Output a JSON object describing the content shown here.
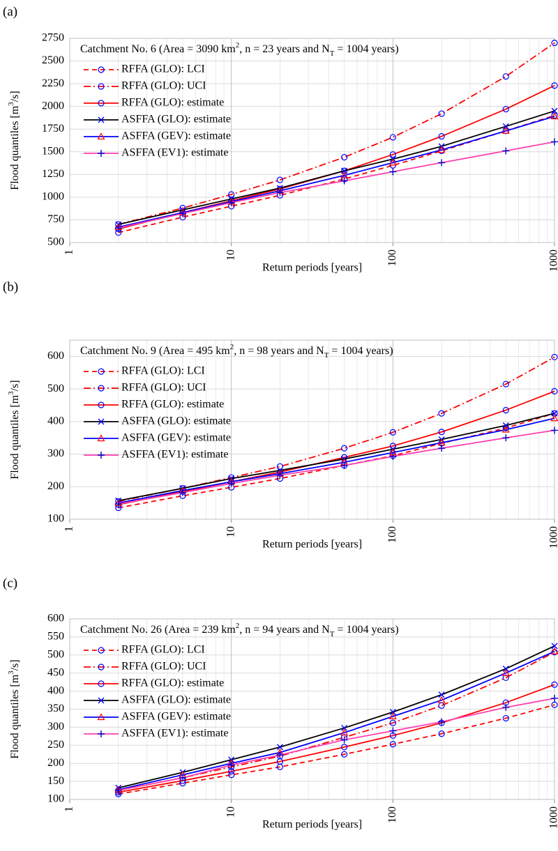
{
  "chart_data": [
    {
      "type": "line",
      "panel": "(a)",
      "annotation": [
        "Catchment No. 6 (Area = 3090 km",
        "2",
        ", n = 23 years and N",
        "T",
        " = 1004 years)"
      ],
      "x_label": "Return periods [years]",
      "y_label": [
        "Flood quantiles [m",
        "3",
        "/s]"
      ],
      "x": [
        2,
        5,
        10,
        20,
        50,
        100,
        200,
        500,
        1000
      ],
      "log_x": true,
      "xlim": [
        1,
        1000
      ],
      "xticks": [
        1,
        10,
        100,
        1000
      ],
      "ylim": [
        500,
        2750
      ],
      "yticks": [
        500,
        750,
        1000,
        1250,
        1500,
        1750,
        2000,
        2250,
        2500,
        2750
      ],
      "grid": true,
      "minor_grid": true,
      "legend": "upper left",
      "series": [
        {
          "name": "RFFA (GLO): LCI",
          "color": "#ff0000",
          "dash": "dashed",
          "marker": "circle",
          "marker_color": "#0000ff",
          "values": [
            610,
            780,
            900,
            1020,
            1200,
            1350,
            1510,
            1730,
            1900
          ]
        },
        {
          "name": "RFFA (GLO): UCI",
          "color": "#ff0000",
          "dash": "dashdot",
          "marker": "circle",
          "marker_color": "#0000ff",
          "values": [
            700,
            880,
            1030,
            1190,
            1440,
            1660,
            1920,
            2330,
            2700
          ]
        },
        {
          "name": "RFFA (GLO): estimate",
          "color": "#ff0000",
          "dash": "solid",
          "marker": "circle",
          "marker_color": "#0000ff",
          "values": [
            650,
            830,
            960,
            1090,
            1290,
            1470,
            1670,
            1970,
            2230
          ]
        },
        {
          "name": "ASFFA (GLO): estimate",
          "color": "#000000",
          "dash": "solid",
          "marker": "x",
          "marker_color": "#0000ff",
          "values": [
            700,
            860,
            980,
            1100,
            1290,
            1420,
            1560,
            1780,
            1950
          ]
        },
        {
          "name": "ASFFA (GEV): estimate",
          "color": "#0000ff",
          "dash": "solid",
          "marker": "triangle",
          "marker_color": "#ff0000",
          "values": [
            670,
            830,
            950,
            1070,
            1240,
            1380,
            1520,
            1730,
            1890
          ]
        },
        {
          "name": "ASFFA (EV1): estimate",
          "color": "#ff40b0",
          "dash": "solid",
          "marker": "plus",
          "marker_color": "#0000cc",
          "values": [
            660,
            820,
            940,
            1050,
            1180,
            1280,
            1380,
            1510,
            1610
          ]
        }
      ]
    },
    {
      "type": "line",
      "panel": "(b)",
      "annotation": [
        "Catchment No. 9 (Area = 495 km",
        "2",
        ", n = 98 years and N",
        "T",
        " = 1004 years)"
      ],
      "x_label": "Return periods [years]",
      "y_label": [
        "Flood quantiles [m",
        "3",
        "/s]"
      ],
      "x": [
        2,
        5,
        10,
        20,
        50,
        100,
        200,
        500,
        1000
      ],
      "log_x": true,
      "xlim": [
        1,
        1000
      ],
      "xticks": [
        1,
        10,
        100,
        1000
      ],
      "ylim": [
        100,
        650
      ],
      "yticks": [
        100,
        200,
        300,
        400,
        500,
        600
      ],
      "grid": true,
      "minor_grid": true,
      "legend": "upper left",
      "series": [
        {
          "name": "RFFA (GLO): LCI",
          "color": "#ff0000",
          "dash": "dashed",
          "marker": "circle",
          "marker_color": "#0000ff",
          "values": [
            135,
            172,
            198,
            225,
            265,
            295,
            333,
            380,
            425
          ]
        },
        {
          "name": "RFFA (GLO): UCI",
          "color": "#ff0000",
          "dash": "dashdot",
          "marker": "circle",
          "marker_color": "#0000ff",
          "values": [
            155,
            195,
            228,
            262,
            318,
            367,
            425,
            515,
            598
          ]
        },
        {
          "name": "RFFA (GLO): estimate",
          "color": "#ff0000",
          "dash": "solid",
          "marker": "circle",
          "marker_color": "#0000ff",
          "values": [
            145,
            185,
            215,
            245,
            290,
            325,
            368,
            435,
            493
          ]
        },
        {
          "name": "ASFFA (GLO): estimate",
          "color": "#000000",
          "dash": "solid",
          "marker": "x",
          "marker_color": "#0000ff",
          "values": [
            157,
            195,
            225,
            250,
            285,
            315,
            345,
            388,
            425
          ]
        },
        {
          "name": "ASFFA (GEV): estimate",
          "color": "#0000ff",
          "dash": "solid",
          "marker": "triangle",
          "marker_color": "#ff0000",
          "values": [
            150,
            188,
            215,
            240,
            275,
            305,
            335,
            375,
            410
          ]
        },
        {
          "name": "ASFFA (EV1): estimate",
          "color": "#ff40b0",
          "dash": "solid",
          "marker": "plus",
          "marker_color": "#0000cc",
          "values": [
            147,
            182,
            210,
            235,
            265,
            293,
            318,
            350,
            373
          ]
        }
      ]
    },
    {
      "type": "line",
      "panel": "(c)",
      "annotation": [
        "Catchment No. 26 (Area = 239 km",
        "2",
        ", n = 94 years and N",
        "T",
        " = 1004 years)"
      ],
      "x_label": "Return periods [years]",
      "y_label": [
        "Flood quantiles [m",
        "3",
        "/s]"
      ],
      "x": [
        2,
        5,
        10,
        20,
        50,
        100,
        200,
        500,
        1000
      ],
      "log_x": true,
      "xlim": [
        1,
        1000
      ],
      "xticks": [
        1,
        10,
        100,
        1000
      ],
      "ylim": [
        100,
        600
      ],
      "yticks": [
        100,
        150,
        200,
        250,
        300,
        350,
        400,
        450,
        500,
        550,
        600
      ],
      "grid": true,
      "minor_grid": true,
      "legend": "upper left",
      "series": [
        {
          "name": "RFFA (GLO): LCI",
          "color": "#ff0000",
          "dash": "dashed",
          "marker": "circle",
          "marker_color": "#0000ff",
          "values": [
            115,
            145,
            168,
            190,
            225,
            253,
            282,
            325,
            362
          ]
        },
        {
          "name": "RFFA (GLO): UCI",
          "color": "#ff0000",
          "dash": "dashdot",
          "marker": "circle",
          "marker_color": "#0000ff",
          "values": [
            125,
            160,
            190,
            220,
            272,
            312,
            360,
            437,
            508
          ]
        },
        {
          "name": "RFFA (GLO): estimate",
          "color": "#ff0000",
          "dash": "solid",
          "marker": "circle",
          "marker_color": "#0000ff",
          "values": [
            120,
            152,
            178,
            205,
            245,
            277,
            312,
            368,
            418
          ]
        },
        {
          "name": "ASFFA (GLO): estimate",
          "color": "#000000",
          "dash": "solid",
          "marker": "x",
          "marker_color": "#0000ff",
          "values": [
            132,
            175,
            210,
            245,
            298,
            342,
            390,
            462,
            525
          ]
        },
        {
          "name": "ASFFA (GEV): estimate",
          "color": "#0000ff",
          "dash": "solid",
          "marker": "triangle",
          "marker_color": "#ff0000",
          "values": [
            127,
            168,
            200,
            230,
            285,
            330,
            375,
            450,
            510
          ]
        },
        {
          "name": "ASFFA (EV1): estimate",
          "color": "#ff40b0",
          "dash": "solid",
          "marker": "plus",
          "marker_color": "#0000cc",
          "values": [
            125,
            160,
            195,
            223,
            265,
            290,
            315,
            355,
            380
          ]
        }
      ]
    }
  ]
}
